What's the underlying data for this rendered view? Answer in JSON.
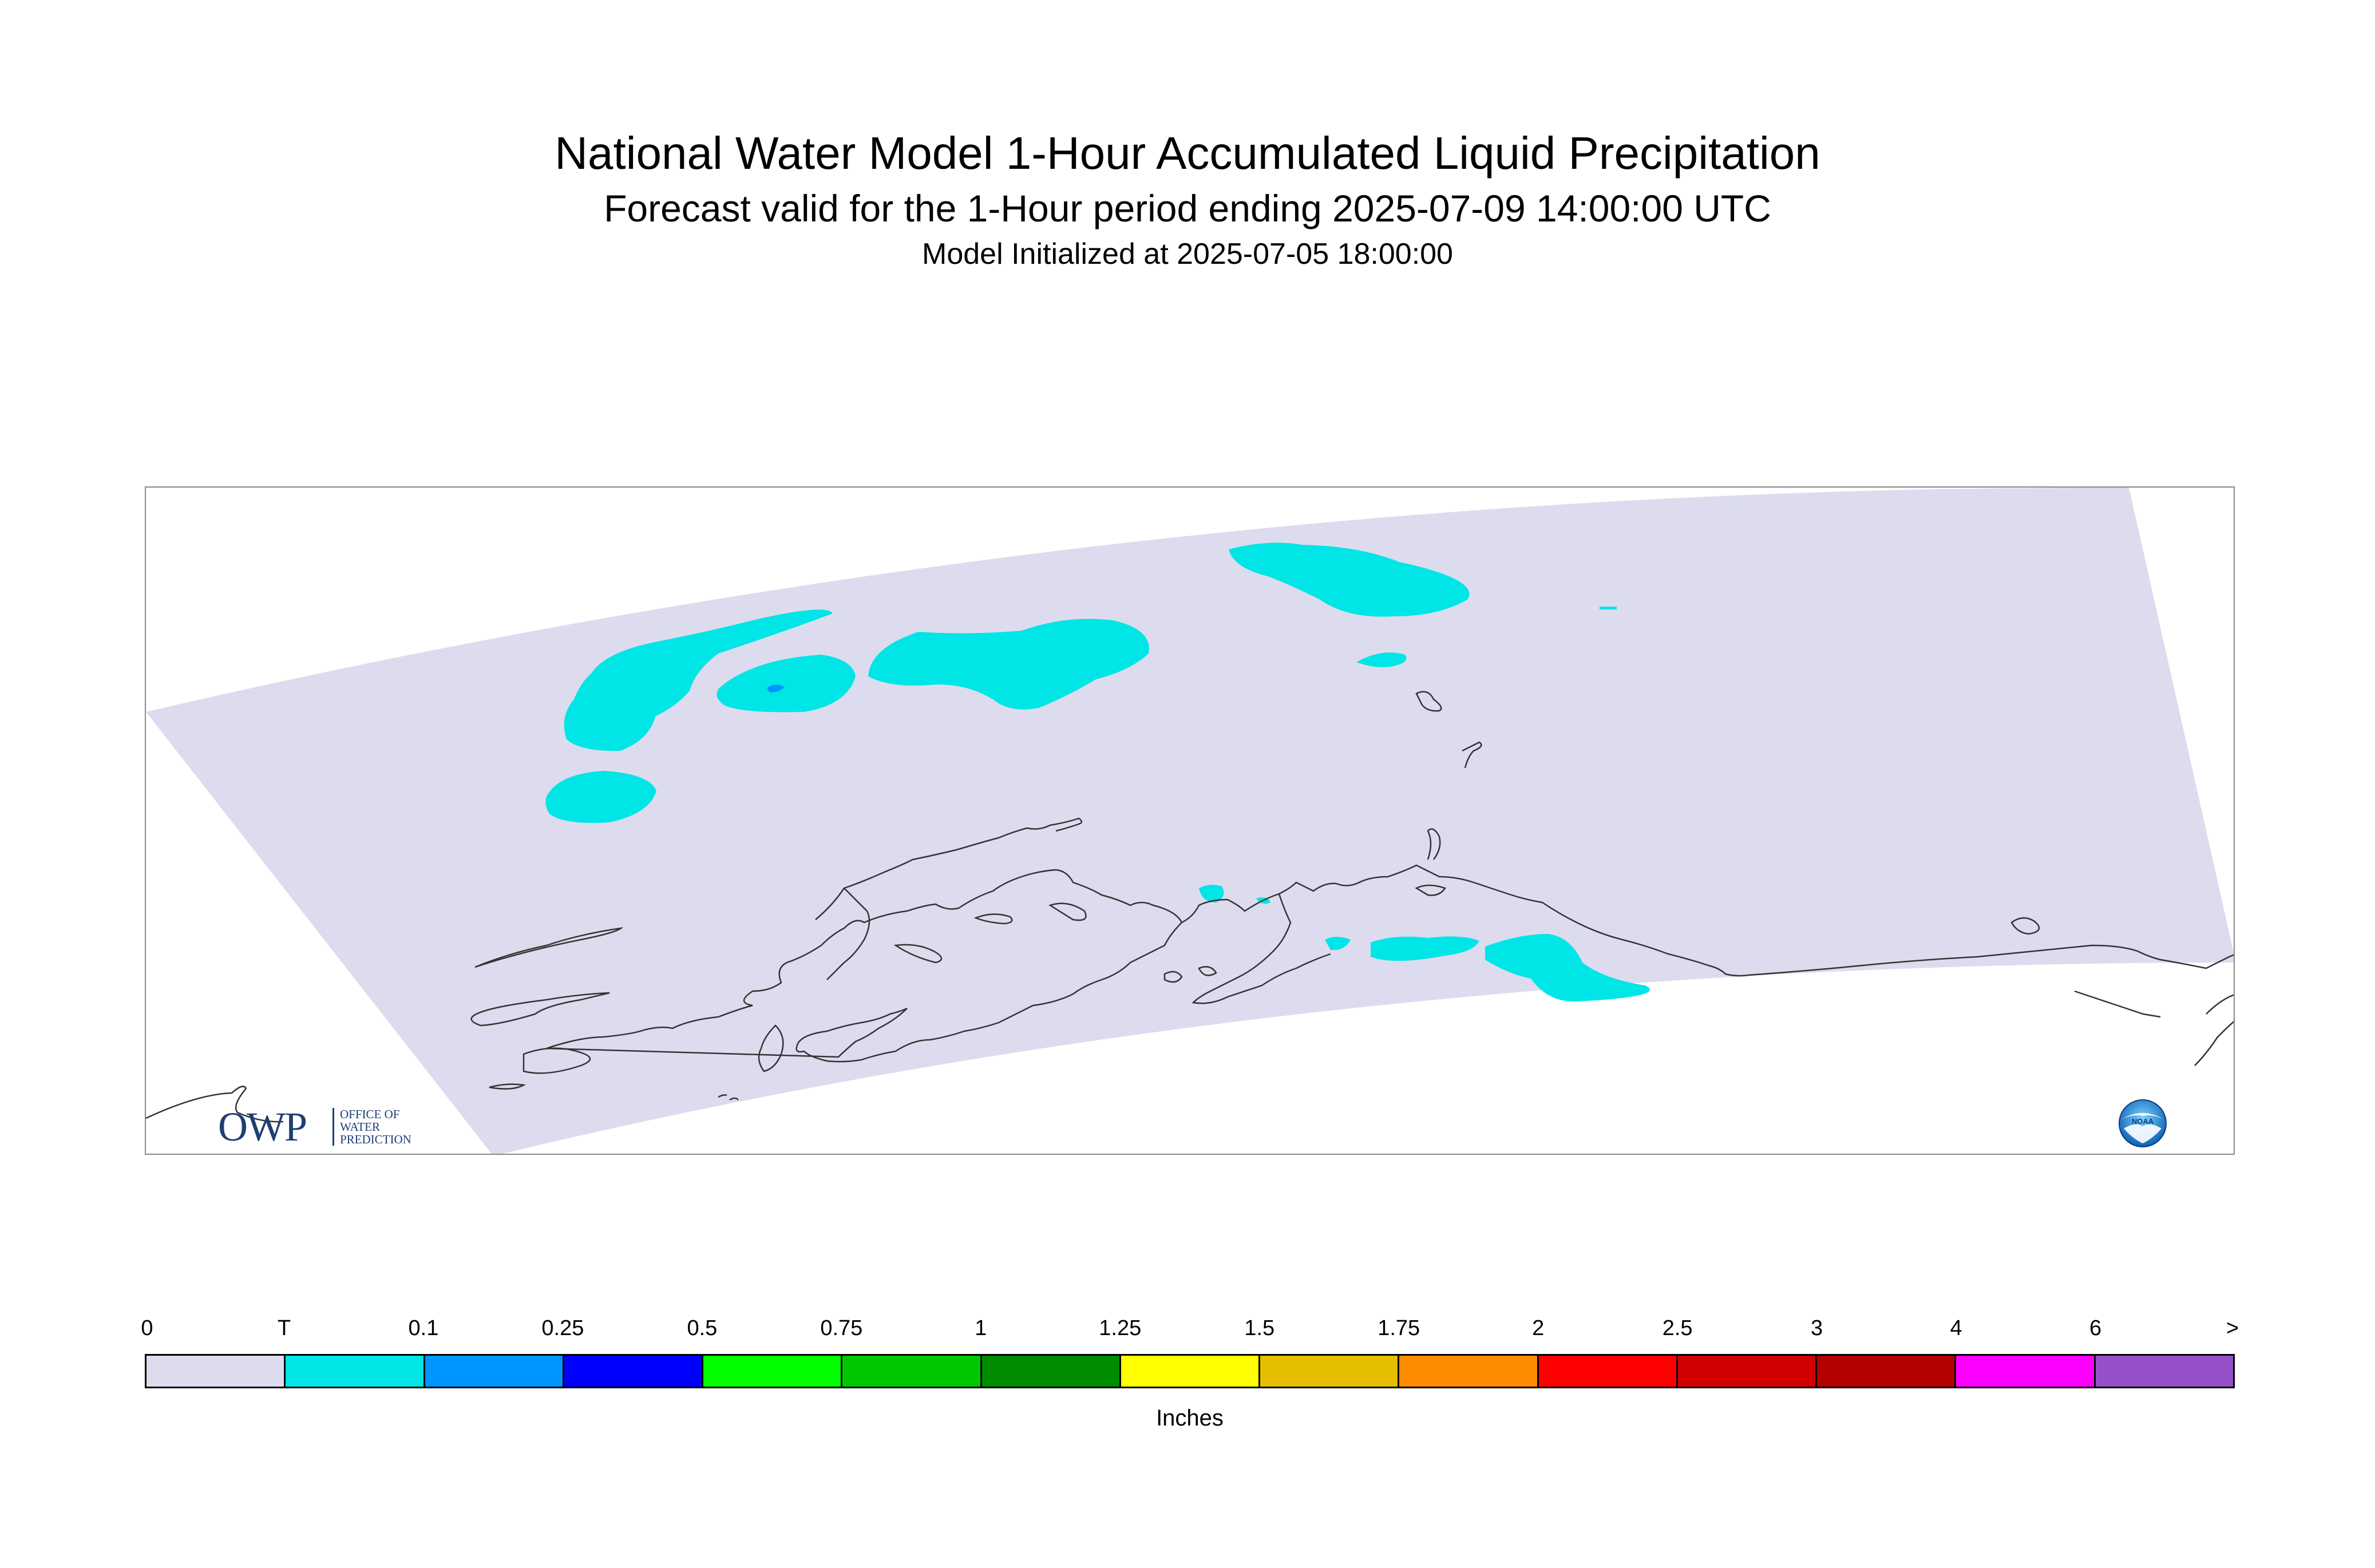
{
  "title": "National Water Model 1-Hour Accumulated Liquid Precipitation",
  "subtitle": "Forecast valid for the 1-Hour period ending 2025-07-09 14:00:00 UTC",
  "init_line": "Model Initialized at 2025-07-05 18:00:00",
  "map": {
    "grid_fill_color": "#dcdcee",
    "precip_trace_color": "#00e5e5",
    "precip_low_color": "#0096ff",
    "coastline_color": "#333333"
  },
  "logos": {
    "owp": {
      "letters": "OWP",
      "line1": "OFFICE OF",
      "line2": "WATER",
      "line3": "PREDICTION"
    },
    "noaa": {
      "text": "NOAA"
    }
  },
  "legend": {
    "units": "Inches",
    "tick_labels": [
      "0",
      "T",
      "0.1",
      "0.25",
      "0.5",
      "0.75",
      "1",
      "1.25",
      "1.5",
      "1.75",
      "2",
      "2.5",
      "3",
      "4",
      "6",
      ">"
    ],
    "colors": [
      "#dcdcee",
      "#00e5e5",
      "#0096ff",
      "#0000ff",
      "#00ff00",
      "#00c800",
      "#008c00",
      "#ffff00",
      "#e6be00",
      "#ff8c00",
      "#ff0000",
      "#d20000",
      "#b40000",
      "#ff00ff",
      "#9650c8"
    ]
  }
}
